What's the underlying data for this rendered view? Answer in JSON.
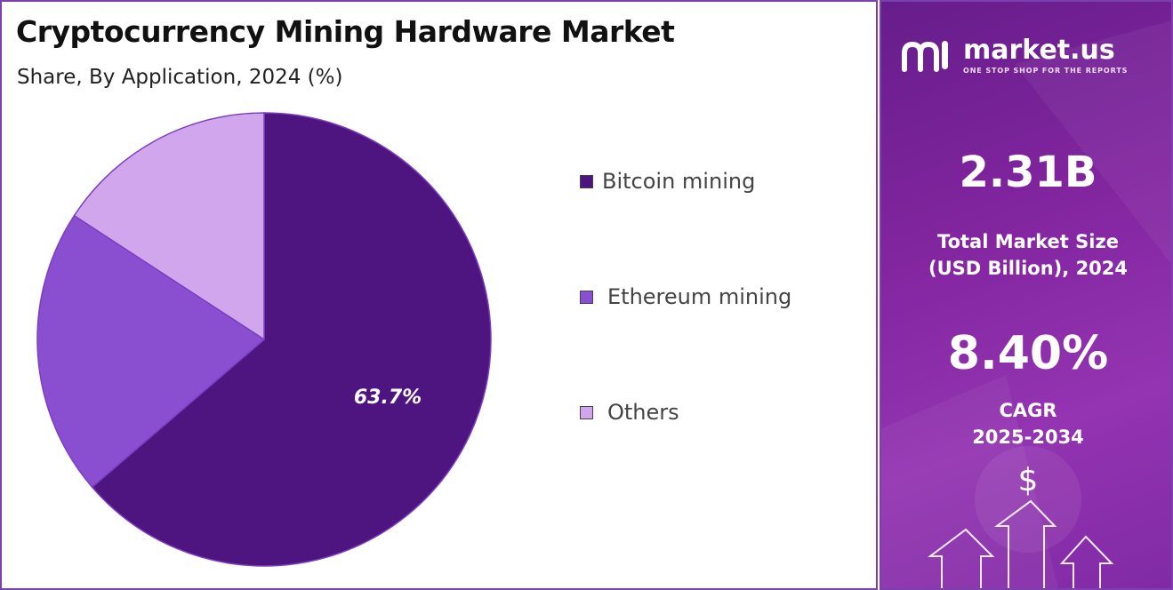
{
  "header": {
    "title": "Cryptocurrency Mining Hardware Market",
    "subtitle": "Share, By Application, 2024 (%)"
  },
  "chart_data": {
    "type": "pie",
    "title": "Cryptocurrency Mining Hardware Market",
    "subtitle": "Share, By Application, 2024 (%)",
    "categories": [
      "Bitcoin mining",
      "Ethereum mining",
      "Others"
    ],
    "values": [
      63.7,
      20.5,
      15.8
    ],
    "data_labels": [
      "63.7%",
      "",
      ""
    ],
    "colors": [
      "#4e1580",
      "#8a4ed0",
      "#d2a6ec"
    ],
    "legend_position": "right"
  },
  "legend": {
    "items": [
      {
        "label": "Bitcoin mining",
        "color": "#4e1580"
      },
      {
        "label": "Ethereum mining",
        "color": "#8a4ed0"
      },
      {
        "label": "Others",
        "color": "#d2a6ec"
      }
    ]
  },
  "sidebar": {
    "brand_name": "market.us",
    "brand_tagline": "ONE STOP SHOP FOR THE REPORTS",
    "market_size_value": "2.31B",
    "market_size_label_line1": "Total Market Size",
    "market_size_label_line2": "(USD Billion), 2024",
    "cagr_value": "8.40%",
    "cagr_label_line1": "CAGR",
    "cagr_label_line2": "2025-2034",
    "currency_symbol": "$",
    "logo_icon": "market-us-logo-icon",
    "decor_icon": "growth-arrows-icon"
  }
}
